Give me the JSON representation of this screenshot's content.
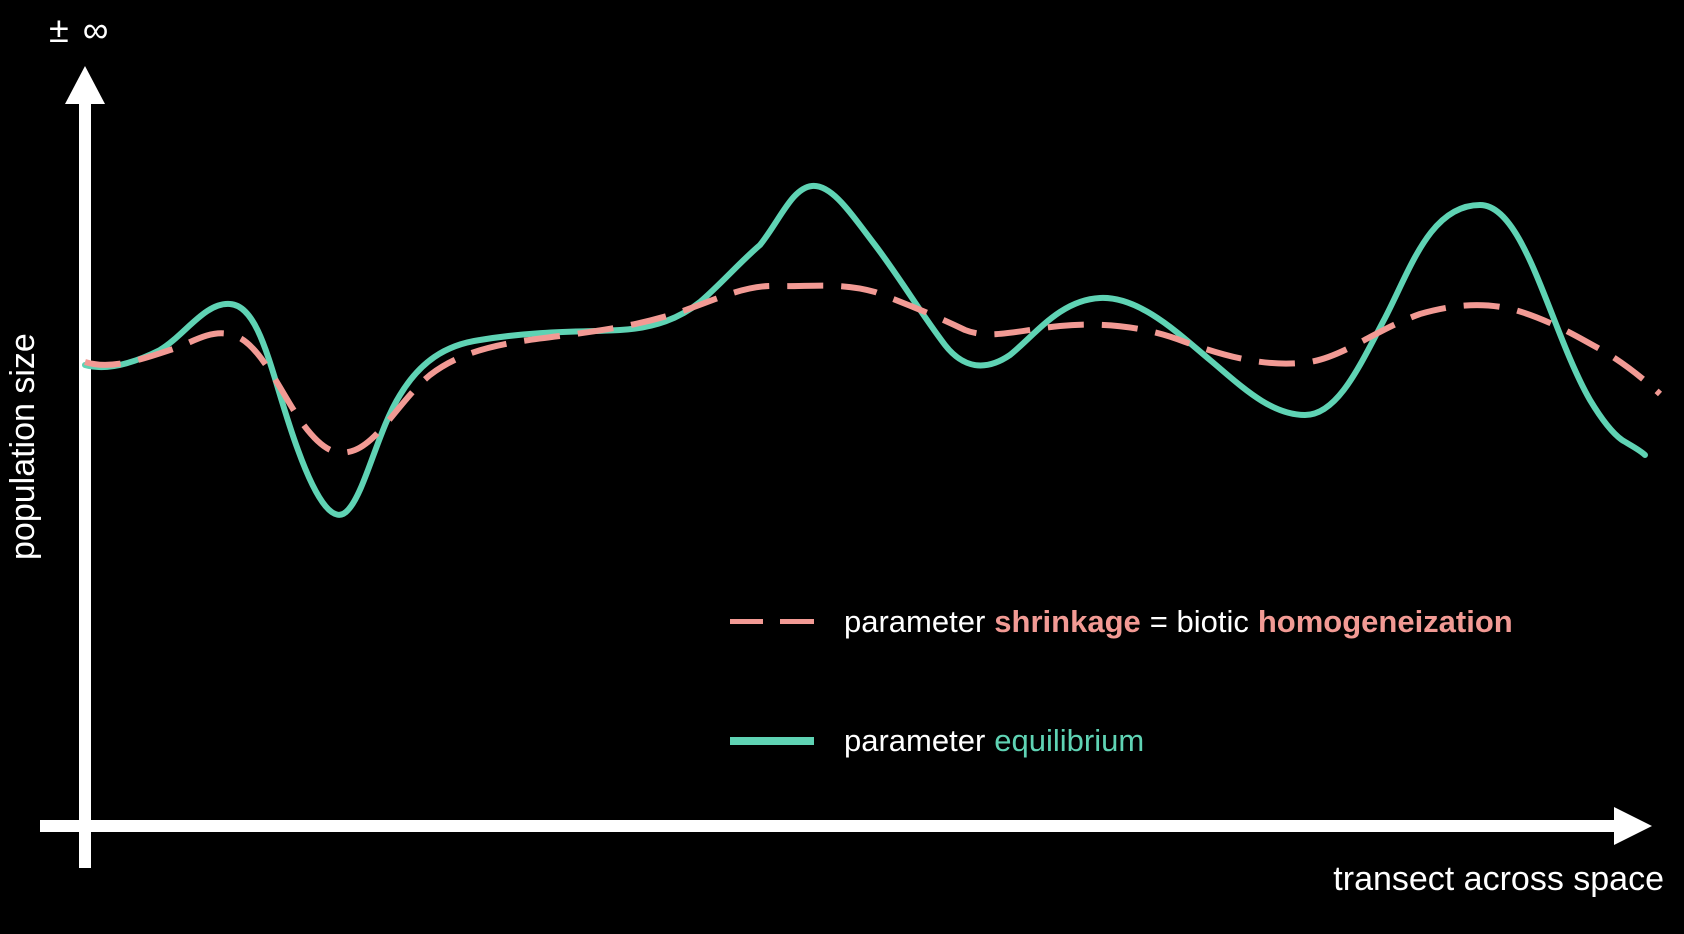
{
  "axes": {
    "y_top_label": "± ∞",
    "y_label": "population size",
    "x_label": "transect across space"
  },
  "colors": {
    "background": "#000000",
    "axis": "#ffffff",
    "shrinkage": "#f29a94",
    "equilibrium": "#5fd3b4"
  },
  "legend": {
    "shrinkage": {
      "prefix": "parameter",
      "term": "shrinkage",
      "equals": "= biotic",
      "result": "homogeneization",
      "line_style": "dashed"
    },
    "equilibrium": {
      "prefix": "parameter",
      "term": "equilibrium",
      "line_style": "solid"
    }
  }
}
